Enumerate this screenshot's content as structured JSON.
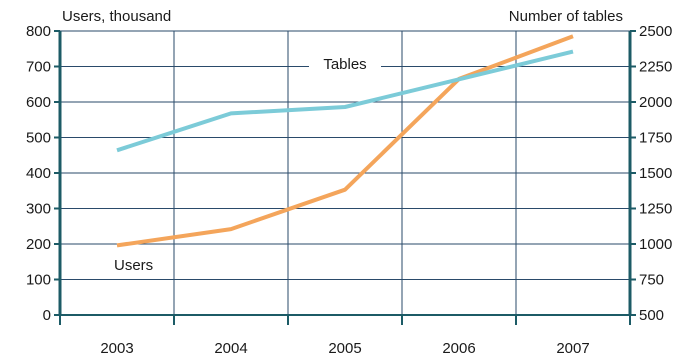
{
  "chart_data": {
    "type": "line",
    "x": [
      "2003",
      "2004",
      "2005",
      "2006",
      "2007"
    ],
    "left_axis": {
      "label": "Users, thousand",
      "range": [
        0,
        800
      ],
      "ticks": [
        "0",
        "100",
        "200",
        "300",
        "400",
        "500",
        "600",
        "700",
        "800"
      ]
    },
    "right_axis": {
      "label": "Number of tables",
      "range": [
        500,
        2500
      ],
      "ticks": [
        "500",
        "750",
        "1000",
        "1250",
        "1500",
        "1750",
        "2000",
        "2250",
        "2500"
      ]
    },
    "series": [
      {
        "name": "Users",
        "axis": "left",
        "color": "#f4a55b",
        "values": [
          196,
          242,
          353,
          665,
          785
        ]
      },
      {
        "name": "Tables",
        "axis": "right",
        "color": "#7ccbd8",
        "values": [
          1660,
          1920,
          1965,
          2160,
          2355
        ]
      }
    ],
    "grid": true,
    "axis_color": "#1c5b66"
  }
}
